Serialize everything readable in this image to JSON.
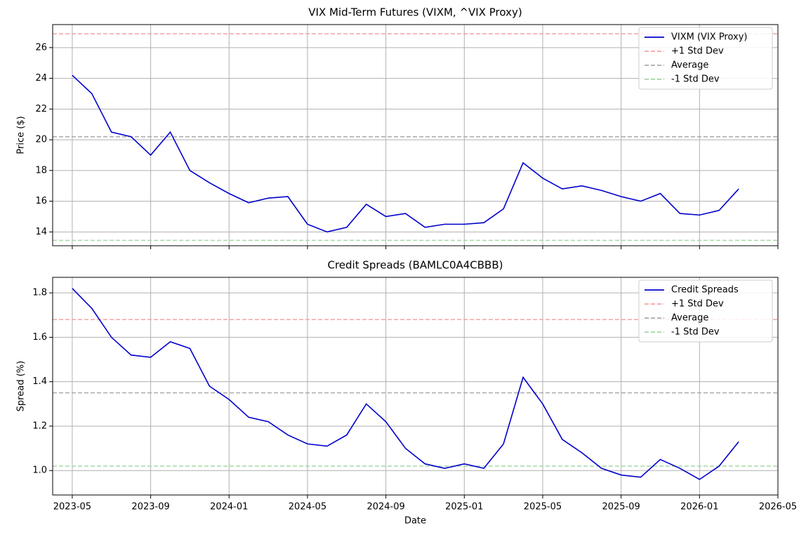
{
  "chart_data": [
    {
      "type": "line",
      "title": "VIX Mid-Term Futures (VIXM, ^VIX Proxy)",
      "y_label": "Price ($)",
      "x": [
        "2023-05",
        "2023-06",
        "2023-07",
        "2023-08",
        "2023-09",
        "2023-10",
        "2023-11",
        "2023-12",
        "2024-01",
        "2024-02",
        "2024-03",
        "2024-04",
        "2024-05",
        "2024-06",
        "2024-07",
        "2024-08",
        "2024-09",
        "2024-10",
        "2024-11",
        "2024-12",
        "2025-01",
        "2025-02",
        "2025-03",
        "2025-04",
        "2025-05",
        "2025-06",
        "2025-07",
        "2025-08",
        "2025-09",
        "2025-10",
        "2025-11",
        "2025-12",
        "2026-01",
        "2026-02",
        "2026-03"
      ],
      "series": [
        {
          "name": "VIXM (VIX Proxy)",
          "color": "#0000cc",
          "values": [
            24.2,
            23.0,
            20.5,
            20.2,
            19.0,
            20.5,
            18.0,
            17.2,
            16.5,
            15.9,
            16.2,
            16.3,
            14.5,
            14.0,
            14.3,
            15.8,
            15.0,
            15.2,
            14.3,
            14.5,
            14.5,
            14.6,
            15.5,
            18.5,
            17.5,
            16.8,
            17.0,
            16.7,
            16.3,
            16.0,
            16.5,
            15.2,
            15.1,
            15.4,
            16.8
          ]
        }
      ],
      "reference_lines": [
        {
          "name": "+1 Std Dev",
          "value": 26.9,
          "color": "#f4a3a3"
        },
        {
          "name": "Average",
          "value": 20.2,
          "color": "#aaaaaa"
        },
        {
          "name": "-1 Std Dev",
          "value": 13.45,
          "color": "#a6d8a6"
        }
      ],
      "xlim": [
        "2023-04",
        "2026-05"
      ],
      "xticks": [
        "2023-05",
        "2023-09",
        "2024-01",
        "2024-05",
        "2024-09",
        "2025-01",
        "2025-05",
        "2025-09",
        "2026-01",
        "2026-05"
      ],
      "xtick_labels": false,
      "ylim": [
        13.1,
        27.5
      ],
      "yticks": [
        14,
        16,
        18,
        20,
        22,
        24,
        26
      ],
      "grid": true,
      "legend": "upper right"
    },
    {
      "type": "line",
      "title": "Credit Spreads (BAMLC0A4CBBB)",
      "y_label": "Spread (%)",
      "x_label": "Date",
      "x": [
        "2023-05",
        "2023-06",
        "2023-07",
        "2023-08",
        "2023-09",
        "2023-10",
        "2023-11",
        "2023-12",
        "2024-01",
        "2024-02",
        "2024-03",
        "2024-04",
        "2024-05",
        "2024-06",
        "2024-07",
        "2024-08",
        "2024-09",
        "2024-10",
        "2024-11",
        "2024-12",
        "2025-01",
        "2025-02",
        "2025-03",
        "2025-04",
        "2025-05",
        "2025-06",
        "2025-07",
        "2025-08",
        "2025-09",
        "2025-10",
        "2025-11",
        "2025-12",
        "2026-01",
        "2026-02",
        "2026-03"
      ],
      "series": [
        {
          "name": "Credit Spreads",
          "color": "#0000cc",
          "values": [
            1.82,
            1.73,
            1.6,
            1.52,
            1.51,
            1.58,
            1.55,
            1.38,
            1.32,
            1.24,
            1.22,
            1.16,
            1.12,
            1.11,
            1.16,
            1.3,
            1.22,
            1.1,
            1.03,
            1.01,
            1.03,
            1.01,
            1.12,
            1.42,
            1.3,
            1.14,
            1.08,
            1.01,
            0.98,
            0.97,
            1.05,
            1.01,
            0.96,
            1.02,
            1.13
          ]
        }
      ],
      "reference_lines": [
        {
          "name": "+1 Std Dev",
          "value": 1.68,
          "color": "#f4a3a3"
        },
        {
          "name": "Average",
          "value": 1.35,
          "color": "#aaaaaa"
        },
        {
          "name": "-1 Std Dev",
          "value": 1.02,
          "color": "#a6d8a6"
        }
      ],
      "xlim": [
        "2023-04",
        "2026-05"
      ],
      "xticks": [
        "2023-05",
        "2023-09",
        "2024-01",
        "2024-05",
        "2024-09",
        "2025-01",
        "2025-05",
        "2025-09",
        "2026-01",
        "2026-05"
      ],
      "xtick_labels": true,
      "ylim": [
        0.89,
        1.87
      ],
      "yticks": [
        {
          "value": 1.0,
          "label": "1.0"
        },
        {
          "value": 1.2,
          "label": "1.2"
        },
        {
          "value": 1.4,
          "label": "1.4"
        },
        {
          "value": 1.6,
          "label": "1.6"
        },
        {
          "value": 1.8,
          "label": "1.8"
        }
      ],
      "grid": true,
      "legend": "upper right"
    }
  ]
}
